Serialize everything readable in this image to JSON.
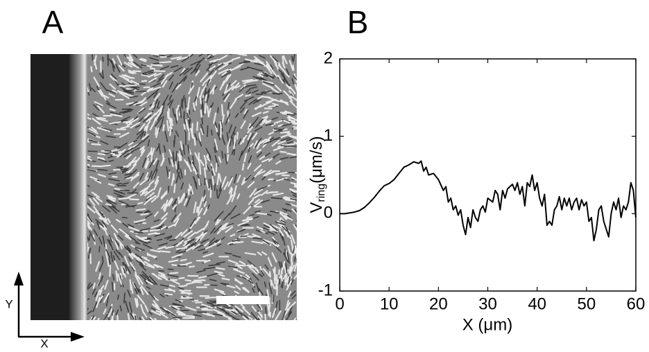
{
  "panel_a": {
    "label": "A",
    "arrow_y_label": "Y",
    "arrow_x_label": "X"
  },
  "chart_data": {
    "type": "line",
    "panel_label": "B",
    "xlabel": "X (μm)",
    "ylabel": [
      "V",
      "ring",
      "(μm/s)"
    ],
    "x": [
      0,
      1,
      2,
      3,
      4,
      5,
      6,
      7,
      8,
      9,
      10,
      11,
      12,
      13,
      14,
      15,
      16,
      16.5,
      17,
      17.5,
      18,
      19,
      20,
      21,
      21.5,
      22,
      22.5,
      23,
      23.5,
      24,
      24.5,
      25,
      25.5,
      26,
      26.5,
      27,
      27.5,
      28,
      28.5,
      29,
      29.5,
      30,
      31,
      31.5,
      32,
      32.5,
      33,
      33.5,
      34,
      34.5,
      35,
      35.5,
      36,
      36.5,
      37,
      37.5,
      38,
      38.5,
      39,
      39.5,
      40,
      40.5,
      41,
      41.5,
      42,
      42.5,
      43,
      43.5,
      44,
      44.5,
      45,
      45.5,
      46,
      46.5,
      47,
      47.5,
      48,
      48.5,
      49,
      49.5,
      50,
      50.5,
      51,
      51.5,
      52,
      52.5,
      53,
      53.5,
      54,
      54.5,
      55,
      55.5,
      56,
      56.5,
      57,
      57.5,
      58,
      58.5,
      59,
      59.5,
      60
    ],
    "values": [
      0,
      0,
      0.01,
      0.02,
      0.04,
      0.08,
      0.14,
      0.21,
      0.29,
      0.36,
      0.39,
      0.44,
      0.52,
      0.6,
      0.63,
      0.67,
      0.65,
      0.68,
      0.55,
      0.6,
      0.5,
      0.52,
      0.44,
      0.3,
      0.35,
      0.15,
      0.2,
      0.05,
      0.1,
      -0.02,
      0.05,
      -0.15,
      -0.27,
      -0.05,
      -0.18,
      0.05,
      -0.05,
      -0.1,
      0.05,
      0.1,
      0.02,
      0.2,
      0.15,
      0.3,
      0.25,
      0.05,
      0.3,
      0.2,
      0.32,
      0.35,
      0.38,
      0.3,
      0.4,
      0.25,
      0.35,
      0.1,
      0.4,
      0.35,
      0.5,
      0.3,
      0.4,
      0.2,
      0.1,
      0.25,
      -0.15,
      -0.1,
      -0.15,
      0.05,
      0.1,
      0.22,
      0.05,
      0.2,
      0.1,
      0.2,
      0.05,
      0.15,
      0.2,
      0.05,
      0.18,
      0.1,
      0.15,
      -0.1,
      -0.05,
      -0.35,
      -0.2,
      0.05,
      0.1,
      -0.1,
      -0.2,
      -0.3,
      0,
      0.15,
      0.05,
      0.2,
      -0.05,
      0.1,
      0.05,
      0.15,
      0.4,
      0.3,
      -0.05
    ],
    "color": "#000000",
    "xlim": [
      0,
      60
    ],
    "xticks": [
      0,
      10,
      20,
      30,
      40,
      50,
      60
    ],
    "ylim": [
      -1,
      2
    ],
    "yticks": [
      -1,
      0,
      1,
      2
    ]
  }
}
